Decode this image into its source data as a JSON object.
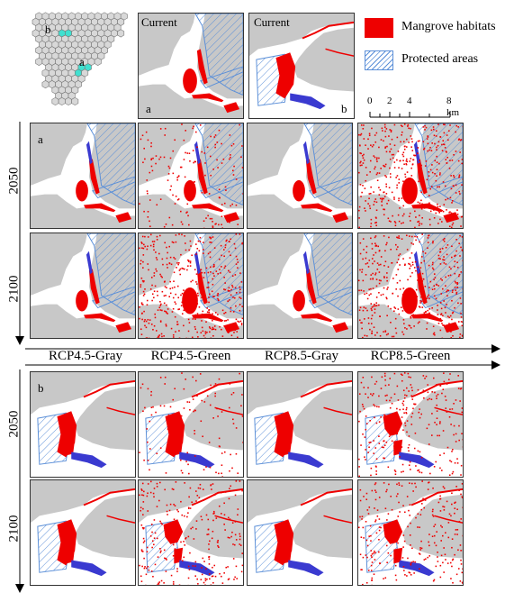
{
  "overview_map": {
    "site_labels": [
      "b",
      "a"
    ]
  },
  "current_panels": [
    {
      "title": "Current",
      "site_label": "a"
    },
    {
      "title": "Current",
      "site_label": "b"
    }
  ],
  "legend": {
    "items": [
      {
        "label": "Mangrove habitats",
        "color": "#ee0000"
      },
      {
        "label": "Protected areas",
        "color": "#5b8fd8"
      }
    ]
  },
  "scalebar": {
    "ticks": [
      "0",
      "2",
      "4",
      "8 km"
    ]
  },
  "grid_a": {
    "site_label": "a",
    "row_labels": [
      "2050",
      "2100"
    ]
  },
  "grid_b": {
    "site_label": "b",
    "row_labels": [
      "2050",
      "2100"
    ]
  },
  "column_labels": [
    "RCP4.5-Gray",
    "RCP4.5-Green",
    "RCP8.5-Gray",
    "RCP8.5-Green"
  ],
  "colors": {
    "land": "#c8c8c8",
    "water": "#ffffff",
    "mangrove": "#ee0000",
    "protected": "#5b8fd8",
    "loss": "#3a3ad0",
    "overview_highlight": "#40e0d0"
  }
}
